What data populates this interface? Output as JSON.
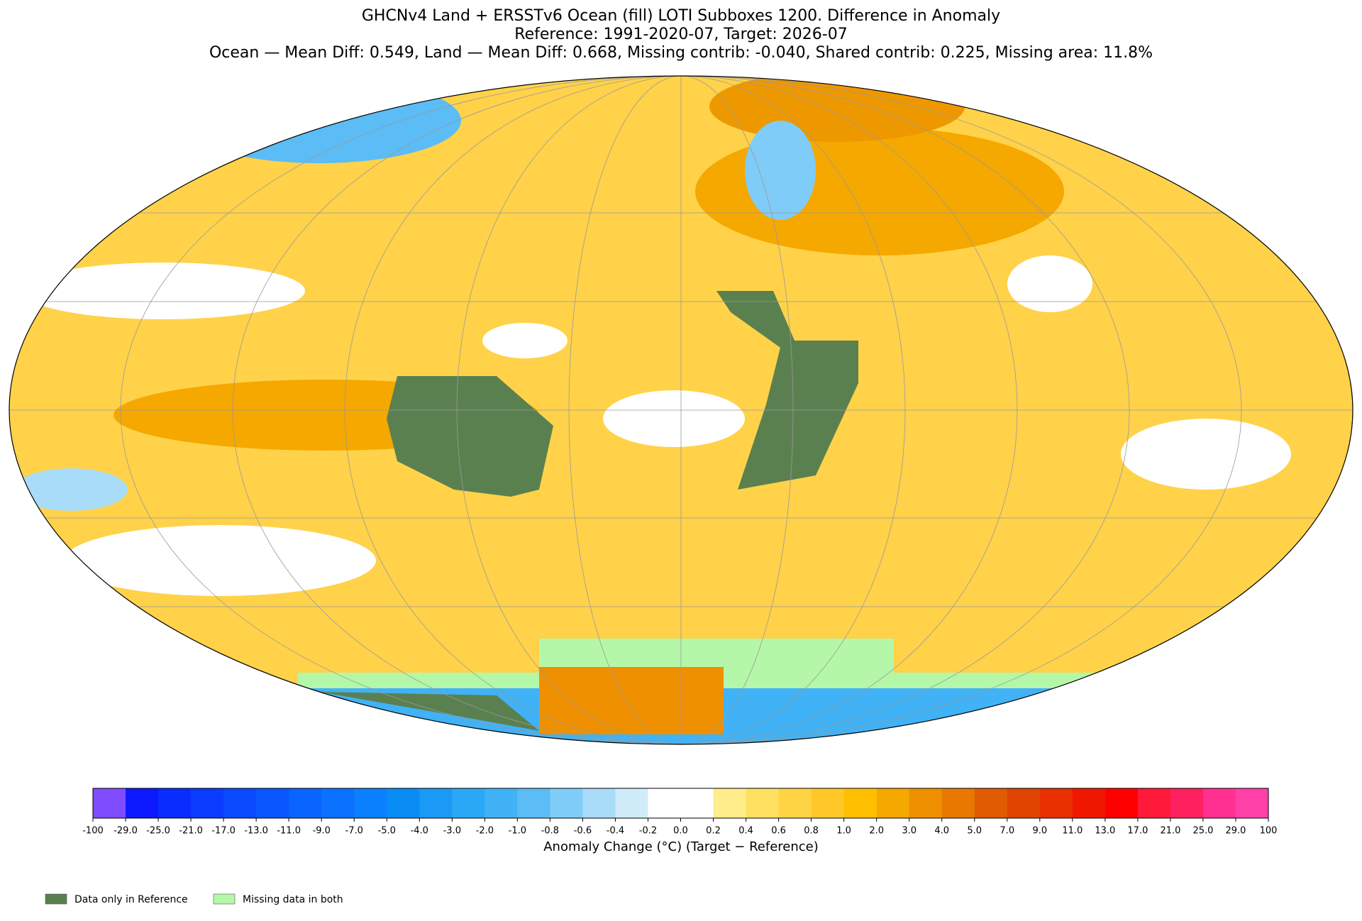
{
  "chart_data": {
    "type": "map",
    "title": "GHCNv4 Land + ERSSTv6 Ocean (fill) LOTI Subboxes 1200. Difference in Anomaly",
    "subtitle": [
      "Reference: 1991-2020-07, Target: 2026-07",
      "Ocean — Mean Diff: 0.549, Land — Mean Diff: 0.668, Missing contrib: -0.040, Shared contrib: 0.225, Missing area: 11.8%"
    ],
    "colorbar": {
      "label": "Anomaly Change (°C) (Target − Reference)",
      "ticks": [
        -100,
        {
          "value": -29,
          "label": "-29.0"
        },
        {
          "value": -25,
          "label": "-25.0"
        },
        {
          "value": -21,
          "label": "-21.0"
        },
        {
          "value": -17,
          "label": "-17.0"
        },
        {
          "value": -13,
          "label": "-13.0"
        },
        {
          "value": -11,
          "label": "-11.0"
        },
        {
          "value": -9,
          "label": "-9.0"
        },
        {
          "value": -7,
          "label": "-7.0"
        },
        {
          "value": -5,
          "label": "-5.0"
        },
        {
          "value": -4,
          "label": "-4.0"
        },
        {
          "value": -3,
          "label": "-3.0"
        },
        {
          "value": -2,
          "label": "-2.0"
        },
        {
          "value": -1,
          "label": "-1.0"
        },
        -0.8,
        -0.6,
        -0.4,
        -0.2,
        {
          "value": 0,
          "label": "0.0"
        },
        0.2,
        0.4,
        0.6,
        0.8,
        {
          "value": 1,
          "label": "1.0"
        },
        {
          "value": 2,
          "label": "2.0"
        },
        {
          "value": 3,
          "label": "3.0"
        },
        {
          "value": 4,
          "label": "4.0"
        },
        {
          "value": 5,
          "label": "5.0"
        },
        {
          "value": 7,
          "label": "7.0"
        },
        {
          "value": 9,
          "label": "9.0"
        },
        {
          "value": 11,
          "label": "11.0"
        },
        {
          "value": 13,
          "label": "13.0"
        },
        {
          "value": 17,
          "label": "17.0"
        },
        {
          "value": 21,
          "label": "21.0"
        },
        {
          "value": 25,
          "label": "25.0"
        },
        {
          "value": 29,
          "label": "29.0"
        },
        100
      ],
      "colors": [
        "#7f4cff",
        "#0d1aff",
        "#0a2dff",
        "#0a3cff",
        "#0a4bff",
        "#0a56ff",
        "#0a64ff",
        "#0a72ff",
        "#0a80ff",
        "#0a8cf5",
        "#1a9af5",
        "#2aa8f5",
        "#40b2f5",
        "#5cbcf5",
        "#80ccf8",
        "#a8dcf8",
        "#d0ecf8",
        "#ffffff",
        "#ffffff",
        "#ffec8a",
        "#ffe060",
        "#ffd444",
        "#ffc828",
        "#ffbf00",
        "#f5a800",
        "#ee9000",
        "#e87800",
        "#e05c00",
        "#e04400",
        "#e83000",
        "#f01800",
        "#ff0000",
        "#ff1a3a",
        "#ff2060",
        "#ff3090",
        "#ff40a8"
      ]
    },
    "legend": [
      {
        "name": "Data only in Reference",
        "color": "#5b8050"
      },
      {
        "name": "Missing data in both",
        "color": "#b4f7a8"
      }
    ]
  }
}
